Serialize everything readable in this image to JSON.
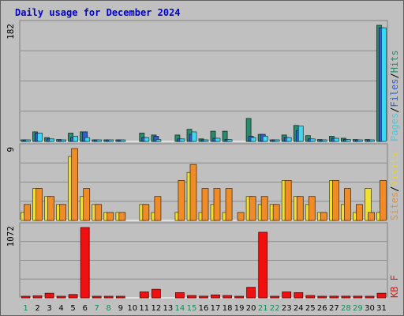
{
  "chart_data": {
    "type": "bar",
    "title": "Daily usage for December 2024",
    "x": [
      "1",
      "2",
      "3",
      "4",
      "5",
      "6",
      "7",
      "8",
      "9",
      "10",
      "11",
      "12",
      "13",
      "14",
      "15",
      "16",
      "17",
      "18",
      "19",
      "20",
      "21",
      "22",
      "23",
      "24",
      "25",
      "26",
      "27",
      "28",
      "29",
      "30",
      "31"
    ],
    "weekend_days": [
      "1",
      "7",
      "8",
      "14",
      "15",
      "21",
      "22",
      "28",
      "29"
    ],
    "panels": [
      {
        "name": "hits",
        "ymax_label": "182",
        "ylim": [
          0,
          182
        ],
        "legend": [
          "Pages",
          "/",
          "Files",
          "/",
          "Hits"
        ],
        "series": [
          {
            "name": "Hits",
            "color": "#2a8a6b",
            "values": [
              2,
              15,
              6,
              3,
              13,
              15,
              2,
              1,
              1,
              0,
              13,
              10,
              0,
              10,
              19,
              4,
              16,
              16,
              0,
              36,
              11,
              2,
              10,
              25,
              9,
              3,
              8,
              5,
              3,
              3,
              182
            ]
          },
          {
            "name": "Files",
            "color": "#2f5fd0",
            "values": [
              1,
              13,
              4,
              2,
              6,
              15,
              1,
              1,
              1,
              0,
              6,
              8,
              0,
              4,
              11,
              2,
              5,
              3,
              0,
              8,
              11,
              1,
              6,
              17,
              4,
              2,
              5,
              3,
              2,
              1,
              178
            ]
          },
          {
            "name": "Pages",
            "color": "#40d8f0",
            "values": [
              1,
              13,
              4,
              2,
              8,
              6,
              1,
              1,
              1,
              0,
              6,
              3,
              0,
              4,
              15,
              2,
              5,
              3,
              0,
              6,
              8,
              1,
              6,
              24,
              4,
              2,
              5,
              3,
              2,
              1,
              178
            ]
          }
        ]
      },
      {
        "name": "visits",
        "ymax_label": "9",
        "ylim": [
          0,
          9
        ],
        "legend": [
          "Sites",
          "/",
          "Visits"
        ],
        "series": [
          {
            "name": "Visits",
            "color": "#f0e030",
            "values": [
              1,
              4,
              3,
              2,
              8,
              3,
              2,
              1,
              1,
              0,
              2,
              1,
              0,
              1,
              6,
              1,
              2,
              1,
              0,
              3,
              2,
              2,
              5,
              3,
              2,
              1,
              5,
              2,
              1,
              4,
              1
            ]
          },
          {
            "name": "Sites",
            "color": "#f08c28",
            "values": [
              2,
              4,
              3,
              2,
              9,
              4,
              2,
              1,
              1,
              0,
              2,
              3,
              0,
              5,
              7,
              4,
              4,
              4,
              1,
              3,
              3,
              2,
              5,
              3,
              3,
              1,
              5,
              4,
              2,
              1,
              5
            ]
          }
        ]
      },
      {
        "name": "kb",
        "ymax_label": "1072",
        "ylim": [
          0,
          1072
        ],
        "legend": [
          "KB",
          "F"
        ],
        "series": [
          {
            "name": "KB F",
            "color": "#f01010",
            "values": [
              10,
              30,
              70,
              10,
              50,
              1072,
              15,
              10,
              15,
              0,
              90,
              130,
              0,
              80,
              35,
              25,
              45,
              35,
              5,
              160,
              1000,
              20,
              90,
              80,
              35,
              15,
              25,
              25,
              25,
              15,
              70
            ]
          }
        ]
      }
    ]
  }
}
